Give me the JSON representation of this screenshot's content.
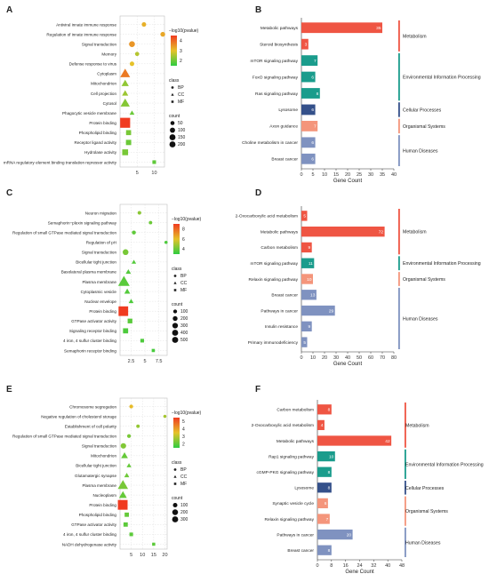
{
  "colors": {
    "grad_high": "#f03b20",
    "grad_mid": "#e6c229",
    "grad_low": "#2ecc40",
    "protein_binding": "#f03b20",
    "bar_metabolism": "#ef5543",
    "bar_env": "#1a9c8c",
    "bar_cellular": "#34508a",
    "bar_organismal": "#f4957b",
    "bar_human": "#7f92c0",
    "category_line": "#e8e8e8"
  },
  "panels": [
    {
      "id": "A",
      "letter": "A"
    },
    {
      "id": "B",
      "letter": "B"
    },
    {
      "id": "C",
      "letter": "C"
    },
    {
      "id": "D",
      "letter": "D"
    },
    {
      "id": "E",
      "letter": "E"
    },
    {
      "id": "F",
      "letter": "F"
    }
  ],
  "chart_data": [
    {
      "panel": "A",
      "type": "scatter",
      "xlabel": "",
      "xticks": [
        5,
        10
      ],
      "xlim": [
        0,
        13
      ],
      "legend": {
        "color_title": "−log10(pvalue)",
        "color_ticks": [
          2,
          3,
          4
        ],
        "color_range": [
          1.5,
          4.5
        ],
        "class_title": "class",
        "classes": [
          "BP",
          "CC",
          "MF"
        ],
        "count_title": "count",
        "count_values": [
          50,
          100,
          150,
          200
        ]
      },
      "points": [
        {
          "term": "Antiviral innate immune response",
          "x": 7,
          "class": "BP",
          "count": 20,
          "p": 3.2
        },
        {
          "term": "Regulation of innate immune response",
          "x": 12.5,
          "class": "BP",
          "count": 25,
          "p": 3.3
        },
        {
          "term": "Signal transduction",
          "x": 3.5,
          "class": "BP",
          "count": 50,
          "p": 3.5
        },
        {
          "term": "Memory",
          "x": 5,
          "class": "BP",
          "count": 15,
          "p": 2.6
        },
        {
          "term": "Defense response to virus",
          "x": 3.5,
          "class": "BP",
          "count": 20,
          "p": 3.0
        },
        {
          "term": "Cytoplasm",
          "x": 1.5,
          "class": "CC",
          "count": 120,
          "p": 3.8
        },
        {
          "term": "Mitochondrion",
          "x": 1.5,
          "class": "CC",
          "count": 50,
          "p": 2.3
        },
        {
          "term": "Cell projection",
          "x": 1.5,
          "class": "CC",
          "count": 30,
          "p": 2.4
        },
        {
          "term": "Cytosol",
          "x": 1.5,
          "class": "CC",
          "count": 100,
          "p": 2.2
        },
        {
          "term": "Phagocytic vesicle membrane",
          "x": 3.5,
          "class": "CC",
          "count": 12,
          "p": 2.0
        },
        {
          "term": "Protein binding",
          "x": 1.5,
          "class": "MF",
          "count": 220,
          "p": 4.4
        },
        {
          "term": "Phospholipid binding",
          "x": 2.5,
          "class": "MF",
          "count": 30,
          "p": 2.1
        },
        {
          "term": "Receptor ligand activity",
          "x": 2.5,
          "class": "MF",
          "count": 35,
          "p": 2.0
        },
        {
          "term": "Hydrolase activity",
          "x": 1.5,
          "class": "MF",
          "count": 50,
          "p": 2.1
        },
        {
          "term": "mRNA regulatory element binding translation repressor activity",
          "x": 10,
          "class": "MF",
          "count": 8,
          "p": 1.9
        }
      ]
    },
    {
      "panel": "B",
      "type": "bar",
      "xlabel": "Gene Count",
      "xticks": [
        0,
        5,
        10,
        15,
        20,
        25,
        30,
        35,
        40
      ],
      "xlim": [
        0,
        40
      ],
      "bars": [
        {
          "label": "Metabolic pathways",
          "value": 35,
          "group": "metabolism"
        },
        {
          "label": "Steroid biosynthesis",
          "value": 3,
          "group": "metabolism"
        },
        {
          "label": "mTOR signaling pathway",
          "value": 7,
          "group": "env"
        },
        {
          "label": "FoxO signaling pathway",
          "value": 6,
          "group": "env"
        },
        {
          "label": "Ras signaling pathway",
          "value": 8,
          "group": "env"
        },
        {
          "label": "Lysosome",
          "value": 6,
          "group": "cellular"
        },
        {
          "label": "Axon guidance",
          "value": 7,
          "group": "organismal"
        },
        {
          "label": "Choline metabolism in cancer",
          "value": 6,
          "group": "human"
        },
        {
          "label": "Breast cancer",
          "value": 6,
          "group": "human"
        }
      ],
      "categories": [
        {
          "label": "Metabolism",
          "group": "metabolism"
        },
        {
          "label": "Environmental Information Processing",
          "group": "env"
        },
        {
          "label": "Cellular Processes",
          "group": "cellular"
        },
        {
          "label": "Organismal Systems",
          "group": "organismal"
        },
        {
          "label": "Human Diseases",
          "group": "human"
        }
      ]
    },
    {
      "panel": "C",
      "type": "scatter",
      "xlabel": "",
      "xticks": [
        2.5,
        5.0,
        7.5
      ],
      "xlim": [
        0.5,
        9
      ],
      "legend": {
        "color_title": "−log10(pvalue)",
        "color_ticks": [
          4,
          6,
          8
        ],
        "color_range": [
          3,
          9
        ],
        "class_title": "class",
        "classes": [
          "BP",
          "CC",
          "MF"
        ],
        "count_title": "count",
        "count_values": [
          100,
          200,
          300,
          400,
          500
        ]
      },
      "points": [
        {
          "term": "Neuron migration",
          "x": 4,
          "class": "BP",
          "count": 20,
          "p": 4.5
        },
        {
          "term": "Semaphorin−plexin signaling pathway",
          "x": 6,
          "class": "BP",
          "count": 15,
          "p": 4.0
        },
        {
          "term": "Regulation of small GTPase mediated signal transduction",
          "x": 3,
          "class": "BP",
          "count": 30,
          "p": 3.8
        },
        {
          "term": "Regulation of pH",
          "x": 8.8,
          "class": "BP",
          "count": 10,
          "p": 3.5
        },
        {
          "term": "Signal transduction",
          "x": 1.5,
          "class": "BP",
          "count": 120,
          "p": 4.2
        },
        {
          "term": "Bicellular tight junction",
          "x": 3,
          "class": "CC",
          "count": 20,
          "p": 3.6
        },
        {
          "term": "Basolateral plasma membrane",
          "x": 2,
          "class": "CC",
          "count": 40,
          "p": 3.6
        },
        {
          "term": "Plasma membrane",
          "x": 1.2,
          "class": "CC",
          "count": 450,
          "p": 3.7
        },
        {
          "term": "Cytoplasmic vesicle",
          "x": 1.8,
          "class": "CC",
          "count": 60,
          "p": 3.6
        },
        {
          "term": "Nuclear envelope",
          "x": 2.5,
          "class": "CC",
          "count": 30,
          "p": 3.5
        },
        {
          "term": "Protein binding",
          "x": 1.1,
          "class": "MF",
          "count": 500,
          "p": 8.5
        },
        {
          "term": "GTPase activator activity",
          "x": 2.3,
          "class": "MF",
          "count": 60,
          "p": 3.7
        },
        {
          "term": "Signaling receptor binding",
          "x": 1.5,
          "class": "MF",
          "count": 80,
          "p": 3.5
        },
        {
          "term": "4 iron, 4 sulfur cluster binding",
          "x": 4.5,
          "class": "MF",
          "count": 20,
          "p": 3.5
        },
        {
          "term": "Semaphorin receptor binding",
          "x": 6.5,
          "class": "MF",
          "count": 10,
          "p": 3.4
        }
      ]
    },
    {
      "panel": "D",
      "type": "bar",
      "xlabel": "Gene Count",
      "xticks": [
        0,
        10,
        20,
        30,
        40,
        50,
        60,
        70,
        80
      ],
      "xlim": [
        0,
        80
      ],
      "bars": [
        {
          "label": "2-Oxocarboxylic acid metabolism",
          "value": 5,
          "group": "metabolism"
        },
        {
          "label": "Metabolic pathways",
          "value": 72,
          "group": "metabolism"
        },
        {
          "label": "Carbon metabolism",
          "value": 9,
          "group": "metabolism"
        },
        {
          "label": "mTOR signaling pathway",
          "value": 11,
          "group": "env"
        },
        {
          "label": "Relaxin signaling pathway",
          "value": 10,
          "group": "organismal"
        },
        {
          "label": "Breast cancer",
          "value": 13,
          "group": "human"
        },
        {
          "label": "Pathways in cancer",
          "value": 29,
          "group": "human"
        },
        {
          "label": "Insulin resistance",
          "value": 9,
          "group": "human"
        },
        {
          "label": "Primary immunodeficiency",
          "value": 5,
          "group": "human"
        }
      ],
      "categories": [
        {
          "label": "Metabolism",
          "group": "metabolism"
        },
        {
          "label": "Environmental Information Processing",
          "group": "env"
        },
        {
          "label": "Organismal Systems",
          "group": "organismal"
        },
        {
          "label": "Human Diseases",
          "group": "human"
        }
      ]
    },
    {
      "panel": "E",
      "type": "scatter",
      "xlabel": "",
      "xticks": [
        5,
        10,
        15,
        20
      ],
      "xlim": [
        0,
        21
      ],
      "legend": {
        "color_title": "−log10(pvalue)",
        "color_ticks": [
          2,
          3,
          4,
          5
        ],
        "color_range": [
          1.5,
          5.5
        ],
        "class_title": "class",
        "classes": [
          "BP",
          "CC",
          "MF"
        ],
        "count_title": "count",
        "count_values": [
          100,
          200,
          300
        ]
      },
      "points": [
        {
          "term": "Chromosome segregation",
          "x": 5,
          "class": "BP",
          "count": 15,
          "p": 3.6
        },
        {
          "term": "Negative regulation of cholesterol storage",
          "x": 20,
          "class": "BP",
          "count": 5,
          "p": 2.8
        },
        {
          "term": "Establishment of cell polarity",
          "x": 8,
          "class": "BP",
          "count": 10,
          "p": 2.6
        },
        {
          "term": "Regulation of small GTPase mediated signal transduction",
          "x": 4,
          "class": "BP",
          "count": 15,
          "p": 2.3
        },
        {
          "term": "Signal transduction",
          "x": 1.5,
          "class": "BP",
          "count": 60,
          "p": 2.4
        },
        {
          "term": "Mitochondrion",
          "x": 2,
          "class": "CC",
          "count": 60,
          "p": 2.1
        },
        {
          "term": "Bicellular tight junction",
          "x": 4,
          "class": "CC",
          "count": 15,
          "p": 2.1
        },
        {
          "term": "Glutamatergic synapse",
          "x": 3,
          "class": "CC",
          "count": 20,
          "p": 2.2
        },
        {
          "term": "Plasma membrane",
          "x": 1.3,
          "class": "CC",
          "count": 200,
          "p": 2.3
        },
        {
          "term": "Nucleoplasm",
          "x": 1.3,
          "class": "CC",
          "count": 90,
          "p": 2.1
        },
        {
          "term": "Protein binding",
          "x": 1.2,
          "class": "MF",
          "count": 310,
          "p": 5.2
        },
        {
          "term": "Phospholipid binding",
          "x": 3,
          "class": "MF",
          "count": 25,
          "p": 2.1
        },
        {
          "term": "GTPase activator activity",
          "x": 2.5,
          "class": "MF",
          "count": 25,
          "p": 2.0
        },
        {
          "term": "4 iron, 4 sulfur cluster binding",
          "x": 5,
          "class": "MF",
          "count": 12,
          "p": 2.0
        },
        {
          "term": "NADH dehydrogenase activity",
          "x": 15,
          "class": "MF",
          "count": 5,
          "p": 2.0
        }
      ]
    },
    {
      "panel": "F",
      "type": "bar",
      "xlabel": "Gene Count",
      "xticks": [
        0,
        8,
        16,
        24,
        32,
        40,
        48
      ],
      "xlim": [
        0,
        48
      ],
      "bars": [
        {
          "label": "Carbon metabolism",
          "value": 8,
          "group": "metabolism"
        },
        {
          "label": "2-Oxocarboxylic acid metabolism",
          "value": 4,
          "group": "metabolism"
        },
        {
          "label": "Metabolic pathways",
          "value": 42,
          "group": "metabolism"
        },
        {
          "label": "Rap1 signaling pathway",
          "value": 10,
          "group": "env"
        },
        {
          "label": "cGMP-PKG signaling pathway",
          "value": 8,
          "group": "env"
        },
        {
          "label": "Lysosome",
          "value": 8,
          "group": "cellular"
        },
        {
          "label": "Synaptic vesicle cycle",
          "value": 6,
          "group": "organismal"
        },
        {
          "label": "Relaxin signaling pathway",
          "value": 7,
          "group": "organismal"
        },
        {
          "label": "Pathways in cancer",
          "value": 20,
          "group": "human"
        },
        {
          "label": "Breast cancer",
          "value": 8,
          "group": "human"
        }
      ],
      "categories": [
        {
          "label": "Metabolism",
          "group": "metabolism"
        },
        {
          "label": "Environmental Information Processing",
          "group": "env"
        },
        {
          "label": "Cellular Processes",
          "group": "cellular"
        },
        {
          "label": "Organismal Systems",
          "group": "organismal"
        },
        {
          "label": "Human Diseases",
          "group": "human"
        }
      ]
    }
  ]
}
